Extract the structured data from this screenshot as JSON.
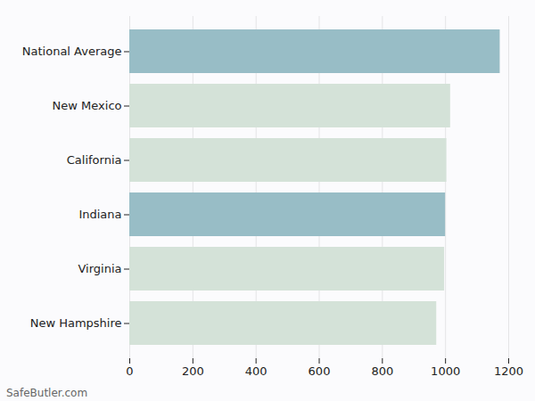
{
  "chart_data": {
    "type": "bar",
    "orientation": "horizontal",
    "categories": [
      "National Average",
      "New Mexico",
      "California",
      "Indiana",
      "Virginia",
      "New Hampshire"
    ],
    "values": [
      1173,
      1016,
      1004,
      1000,
      997,
      972
    ],
    "colors": [
      "#98bdc6",
      "#d4e2d8",
      "#d4e2d8",
      "#98bdc6",
      "#d4e2d8",
      "#d4e2d8"
    ],
    "xlim": [
      0,
      1200
    ],
    "xticks": [
      0,
      200,
      400,
      600,
      800,
      1000,
      1200
    ],
    "grid": true,
    "caption": "SafeButler.com"
  }
}
